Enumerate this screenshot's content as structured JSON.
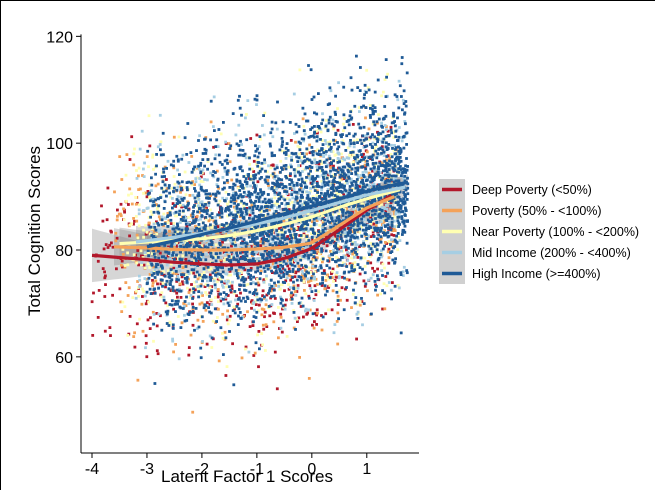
{
  "chart_data": {
    "type": "scatter",
    "xlabel": "Latent Factor 1 Scores",
    "ylabel": "Total Cognition Scores",
    "xlim": [
      -4.2,
      1.95
    ],
    "ylim": [
      42,
      121
    ],
    "x_ticks": [
      -4,
      -3,
      -2,
      -1,
      0,
      1
    ],
    "y_ticks": [
      60,
      80,
      100,
      120
    ],
    "grid": false,
    "legend_position": "right",
    "point_marker": "small-square",
    "smoothing": "loess with shaded confidence band",
    "series": [
      {
        "name": "Deep Poverty (<50%)",
        "color": "#b2182b",
        "x_range": [
          -4.0,
          1.5
        ],
        "y_spread": 9,
        "points": 650,
        "fit": [
          [
            -4.0,
            79.0
          ],
          [
            -3.5,
            78.6
          ],
          [
            -3.0,
            78.2
          ],
          [
            -2.5,
            77.7
          ],
          [
            -2.0,
            77.4
          ],
          [
            -1.5,
            77.2
          ],
          [
            -1.0,
            77.4
          ],
          [
            -0.5,
            78.4
          ],
          [
            0.0,
            80.3
          ],
          [
            0.5,
            83.8
          ],
          [
            1.0,
            87.5
          ],
          [
            1.45,
            90.2
          ]
        ],
        "band": [
          [
            -4.0,
            5.0
          ],
          [
            -3.0,
            3.0
          ],
          [
            -2.0,
            1.8
          ],
          [
            -1.0,
            1.2
          ],
          [
            0.0,
            1.6
          ],
          [
            1.0,
            2.6
          ],
          [
            1.45,
            4.5
          ]
        ]
      },
      {
        "name": "Poverty (50% - <100%)",
        "color": "#f4a259",
        "x_range": [
          -3.6,
          1.55
        ],
        "y_spread": 8.5,
        "points": 550,
        "fit": [
          [
            -3.6,
            80.6
          ],
          [
            -3.0,
            80.4
          ],
          [
            -2.5,
            80.1
          ],
          [
            -2.0,
            80.0
          ],
          [
            -1.5,
            80.0
          ],
          [
            -1.0,
            80.2
          ],
          [
            -0.5,
            80.5
          ],
          [
            0.0,
            81.3
          ],
          [
            0.5,
            84.6
          ],
          [
            1.0,
            87.9
          ],
          [
            1.5,
            90.0
          ]
        ],
        "band": [
          [
            -3.6,
            3.5
          ],
          [
            -3.0,
            2.5
          ],
          [
            -2.0,
            1.5
          ],
          [
            -1.0,
            1.0
          ],
          [
            0.0,
            1.2
          ],
          [
            1.0,
            2.0
          ],
          [
            1.5,
            3.5
          ]
        ]
      },
      {
        "name": "Near Poverty (100% - <200%)",
        "color": "#ffffb2",
        "x_range": [
          -3.5,
          1.6
        ],
        "y_spread": 8.5,
        "points": 800,
        "fit": [
          [
            -3.5,
            81.2
          ],
          [
            -3.0,
            81.5
          ],
          [
            -2.0,
            82.1
          ],
          [
            -1.5,
            82.7
          ],
          [
            -1.0,
            83.6
          ],
          [
            -0.5,
            84.8
          ],
          [
            0.0,
            86.2
          ],
          [
            0.5,
            88.0
          ],
          [
            1.0,
            89.6
          ],
          [
            1.6,
            91.3
          ]
        ],
        "band": [
          [
            -3.5,
            3.0
          ],
          [
            -3.0,
            2.0
          ],
          [
            -2.0,
            1.2
          ],
          [
            -1.0,
            0.8
          ],
          [
            0.0,
            0.8
          ],
          [
            1.0,
            1.2
          ],
          [
            1.6,
            2.5
          ]
        ]
      },
      {
        "name": "Mid Income (200% - <400%)",
        "color": "#a6cee3",
        "x_range": [
          -3.2,
          1.7
        ],
        "y_spread": 8.5,
        "points": 900,
        "fit": [
          [
            -3.2,
            81.5
          ],
          [
            -2.5,
            82.4
          ],
          [
            -2.0,
            83.1
          ],
          [
            -1.5,
            84.0
          ],
          [
            -1.0,
            84.9
          ],
          [
            -0.5,
            86.0
          ],
          [
            0.0,
            87.4
          ],
          [
            0.5,
            88.9
          ],
          [
            1.0,
            90.3
          ],
          [
            1.7,
            91.8
          ]
        ],
        "band": [
          [
            -3.2,
            3.0
          ],
          [
            -2.0,
            1.4
          ],
          [
            -1.0,
            0.8
          ],
          [
            0.0,
            0.6
          ],
          [
            1.0,
            0.8
          ],
          [
            1.7,
            2.0
          ]
        ]
      },
      {
        "name": "High Income (>=400%)",
        "color": "#1f5a96",
        "x_range": [
          -3.0,
          1.75
        ],
        "y_spread": 8.5,
        "points": 2600,
        "fit": [
          [
            -3.0,
            80.6
          ],
          [
            -2.5,
            81.7
          ],
          [
            -2.0,
            82.9
          ],
          [
            -1.5,
            84.1
          ],
          [
            -1.0,
            85.4
          ],
          [
            -0.5,
            86.8
          ],
          [
            0.0,
            88.2
          ],
          [
            0.5,
            89.6
          ],
          [
            1.0,
            91.0
          ],
          [
            1.5,
            92.2
          ],
          [
            1.75,
            92.7
          ]
        ],
        "band": [
          [
            -3.0,
            2.5
          ],
          [
            -2.0,
            1.4
          ],
          [
            -1.0,
            0.7
          ],
          [
            0.0,
            0.5
          ],
          [
            1.0,
            0.6
          ],
          [
            1.75,
            1.5
          ]
        ]
      }
    ]
  }
}
